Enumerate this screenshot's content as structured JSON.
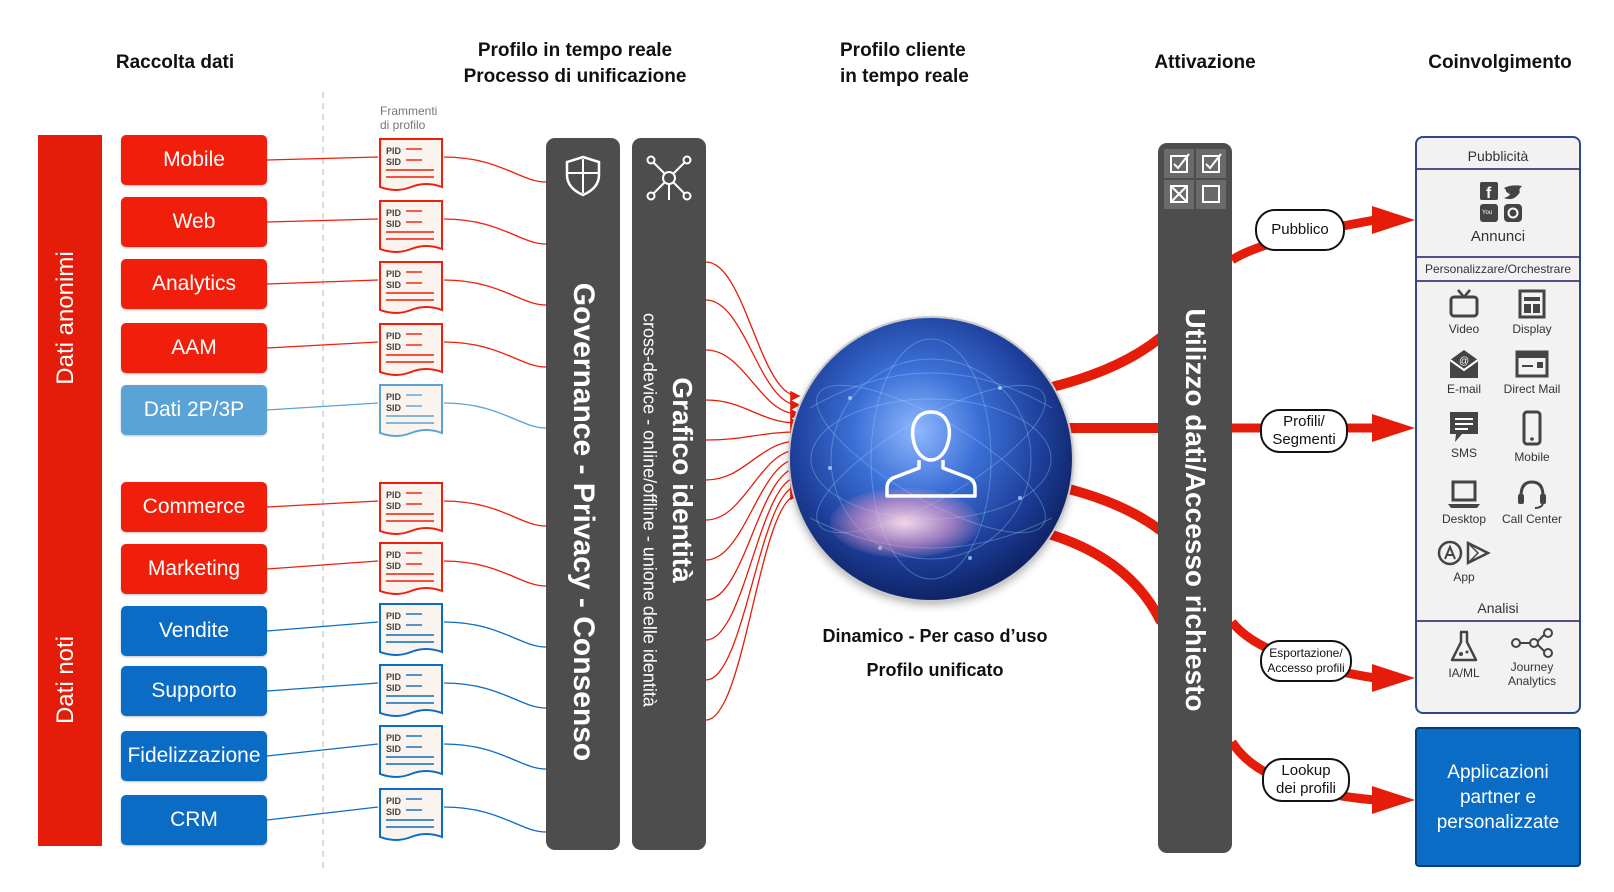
{
  "headers": {
    "data_collection": "Raccolta dati",
    "realtime_profile_line1": "Profilo in tempo reale",
    "realtime_profile_line2": "Processo di unificazione",
    "customer_profile_line1": "Profilo cliente",
    "customer_profile_line2": "in tempo reale",
    "activation": "Attivazione",
    "engagement": "Coinvolgimento"
  },
  "bands": {
    "anonymous": "Dati anonimi",
    "known": "Dati noti"
  },
  "sources": [
    {
      "label": "Mobile",
      "kind": "red"
    },
    {
      "label": "Web",
      "kind": "red"
    },
    {
      "label": "Analytics",
      "kind": "red"
    },
    {
      "label": "AAM",
      "kind": "red"
    },
    {
      "label": "Dati 2P/3P",
      "kind": "lblue"
    },
    {
      "label": "Commerce",
      "kind": "red"
    },
    {
      "label": "Marketing",
      "kind": "red"
    },
    {
      "label": "Vendite",
      "kind": "dblue"
    },
    {
      "label": "Supporto",
      "kind": "dblue"
    },
    {
      "label": "Fidelizzazione",
      "kind": "dblue"
    },
    {
      "label": "CRM",
      "kind": "dblue"
    }
  ],
  "fragments": {
    "caption_line1": "Frammenti",
    "caption_line2": "di profilo",
    "pid": "PID",
    "sid": "SID"
  },
  "columns": {
    "governance": "Governance - Privacy - Consenso",
    "identity_title": "Grafico identità",
    "identity_sub": "cross-device - online/offline - unione delle identità",
    "activation": "Utilizzo dati/Accesso richiesto"
  },
  "profile": {
    "caption1": "Dinamico - Per caso d’uso",
    "caption2": "Profilo unificato"
  },
  "pills": {
    "public": "Pubblico",
    "profiles_l1": "Profili/",
    "profiles_l2": "Segmenti",
    "export_l1": "Esportazione/",
    "export_l2": "Accesso profili",
    "lookup_l1": "Lookup",
    "lookup_l2": "dei profili"
  },
  "panel": {
    "advertising": "Pubblicità",
    "ads": "Annunci",
    "personalize": "Personalizzare/Orchestrare",
    "channels": [
      "Video",
      "Display",
      "E-mail",
      "Direct Mail",
      "SMS",
      "Mobile",
      "Desktop",
      "Call Center",
      "App"
    ],
    "analysis": "Analisi",
    "aiml": "IA/ML",
    "journey_l1": "Journey",
    "journey_l2": "Analytics"
  },
  "partner": {
    "l1": "Applicazioni",
    "l2": "partner e",
    "l3": "personalizzate"
  },
  "colors": {
    "red": "#f01e0b",
    "lblue": "#5aa3d6",
    "dblue": "#0a6cc4",
    "column": "#4d4d4d",
    "arrow": "#f01e0b"
  }
}
